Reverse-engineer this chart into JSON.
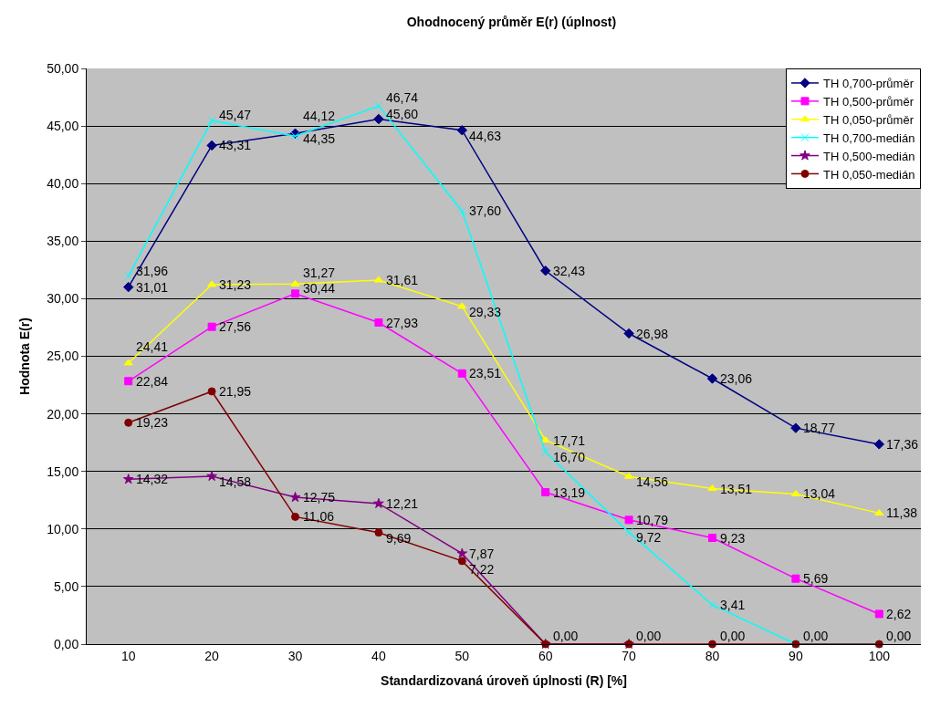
{
  "chart_data": {
    "type": "line",
    "title": "Ohodnocený průměr E(r) (úplnost)",
    "xlabel": "Standardizovaná úroveň úplnosti (R) [%]",
    "ylabel": "Hodnota E(r)",
    "categories": [
      "10",
      "20",
      "30",
      "40",
      "50",
      "60",
      "70",
      "80",
      "90",
      "100"
    ],
    "series": [
      {
        "name": "TH 0,700-průměr",
        "color": "#000080",
        "marker": "diamond",
        "values": [
          31.01,
          43.31,
          44.35,
          45.6,
          44.63,
          32.43,
          26.98,
          23.06,
          18.77,
          17.36
        ],
        "value_labels": [
          "31,01",
          "43,31",
          "44,35",
          "45,60",
          "44,63",
          "32,43",
          "26,98",
          "23,06",
          "18,77",
          "17,36"
        ]
      },
      {
        "name": "TH 0,500-průměr",
        "color": "#ff00ff",
        "marker": "square",
        "values": [
          22.84,
          27.56,
          30.44,
          27.93,
          23.51,
          13.19,
          10.79,
          9.23,
          5.69,
          2.62
        ],
        "value_labels": [
          "22,84",
          "27,56",
          "30,44",
          "27,93",
          "23,51",
          "13,19",
          "10,79",
          "9,23",
          "5,69",
          "2,62"
        ]
      },
      {
        "name": "TH 0,050-průměr",
        "color": "#ffff00",
        "marker": "triangle",
        "values": [
          24.41,
          31.23,
          31.27,
          31.61,
          29.33,
          17.71,
          14.56,
          13.51,
          13.04,
          11.38
        ],
        "value_labels": [
          "24,41",
          "31,23",
          "31,27",
          "31,61",
          "29,33",
          "17,71",
          "14,56",
          "13,51",
          "13,04",
          "11,38"
        ]
      },
      {
        "name": "TH 0,700-medián",
        "color": "#00ffff",
        "marker": "cross",
        "values": [
          31.96,
          45.47,
          44.12,
          46.74,
          37.6,
          16.7,
          9.72,
          3.41,
          0.0,
          0.0
        ],
        "value_labels": [
          "31,96",
          "45,47",
          "44,12",
          "46,74",
          "37,60",
          "16,70",
          "9,72",
          "3,41",
          null,
          null
        ]
      },
      {
        "name": "TH 0,500-medián",
        "color": "#800080",
        "marker": "star",
        "values": [
          14.32,
          14.58,
          12.75,
          12.21,
          7.87,
          0.0,
          0.0,
          null,
          null,
          null
        ],
        "value_labels": [
          "14,32",
          "14,58",
          "12,75",
          "12,21",
          "7,87",
          null,
          null,
          null,
          null,
          null
        ]
      },
      {
        "name": "TH 0,050-medián",
        "color": "#800000",
        "marker": "circle",
        "values": [
          19.23,
          21.95,
          11.06,
          9.69,
          7.22,
          0.0,
          0.0,
          0.0,
          0.0,
          0.0
        ],
        "value_labels": [
          "19,23",
          "21,95",
          "11,06",
          "9,69",
          "7,22",
          "0,00",
          "0,00",
          "0,00",
          "0,00",
          "0,00"
        ]
      }
    ],
    "ylim": [
      0,
      50
    ],
    "yticks": [
      {
        "value": 0,
        "label": "0,00"
      },
      {
        "value": 5,
        "label": "5,00"
      },
      {
        "value": 10,
        "label": "10,00"
      },
      {
        "value": 15,
        "label": "15,00"
      },
      {
        "value": 20,
        "label": "20,00"
      },
      {
        "value": 25,
        "label": "25,00"
      },
      {
        "value": 30,
        "label": "30,00"
      },
      {
        "value": 35,
        "label": "35,00"
      },
      {
        "value": 40,
        "label": "40,00"
      },
      {
        "value": 45,
        "label": "45,00"
      },
      {
        "value": 50,
        "label": "50,00"
      }
    ],
    "grid": "y",
    "legend": "top right",
    "line_style": "solid"
  }
}
